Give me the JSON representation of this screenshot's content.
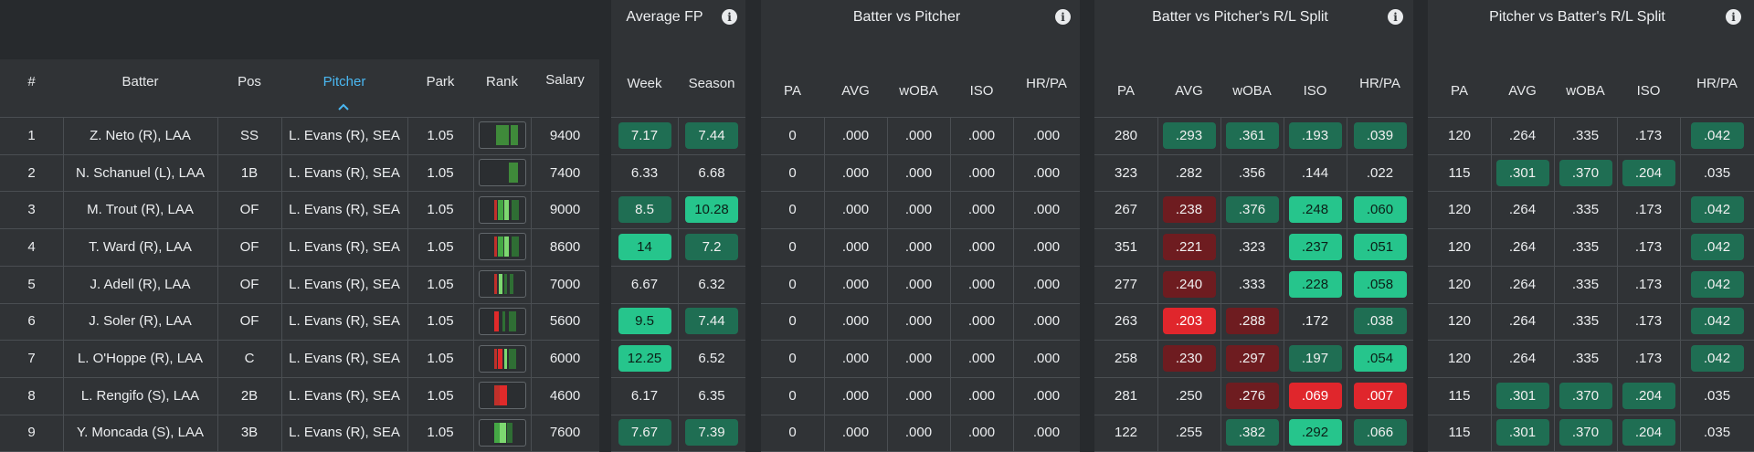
{
  "groups": [
    {
      "title": "Average FP",
      "cols": [
        "Week",
        "Season"
      ]
    },
    {
      "title": "Batter vs Pitcher",
      "cols": [
        "PA",
        "AVG",
        "wOBA",
        "ISO",
        "HR/PA"
      ]
    },
    {
      "title": "Batter vs Pitcher's R/L Split",
      "cols": [
        "PA",
        "AVG",
        "wOBA",
        "ISO",
        "HR/PA"
      ]
    },
    {
      "title": "Pitcher vs Batter's R/L Split",
      "cols": [
        "PA",
        "AVG",
        "wOBA",
        "ISO",
        "HR/PA"
      ]
    }
  ],
  "main_headers": [
    "#",
    "Batter",
    "Pos",
    "Pitcher",
    "Park",
    "Rank",
    "Salary"
  ],
  "sorted_column": "Pitcher",
  "colors": {
    "mid": "#1f6e53",
    "high": "#26c58c",
    "low": "#6e1c20",
    "very_low": "#e0262c",
    "sort_active": "#4ab8f2"
  },
  "rows": [
    {
      "num": "1",
      "batter": "Z. Neto (R), LAA",
      "pos": "SS",
      "pitcher": "L. Evans (R), SEA",
      "park": "1.05",
      "salary": "9400",
      "rank": "dark-green bars",
      "week": {
        "v": "7.17",
        "c": "mid"
      },
      "season": {
        "v": "7.44",
        "c": "mid"
      },
      "bvp": [
        "0",
        ".000",
        ".000",
        ".000",
        ".000"
      ],
      "bvs": [
        {
          "v": "280"
        },
        {
          "v": ".293",
          "c": "mid"
        },
        {
          "v": ".361",
          "c": "mid"
        },
        {
          "v": ".193",
          "c": "mid"
        },
        {
          "v": ".039",
          "c": "mid"
        }
      ],
      "pvb": [
        {
          "v": "120"
        },
        {
          "v": ".264"
        },
        {
          "v": ".335"
        },
        {
          "v": ".173"
        },
        {
          "v": ".042",
          "c": "mid"
        }
      ]
    },
    {
      "num": "2",
      "batter": "N. Schanuel (L), LAA",
      "pos": "1B",
      "pitcher": "L. Evans (R), SEA",
      "park": "1.05",
      "salary": "7400",
      "rank": "dark-green bar",
      "week": {
        "v": "6.33"
      },
      "season": {
        "v": "6.68"
      },
      "bvp": [
        "0",
        ".000",
        ".000",
        ".000",
        ".000"
      ],
      "bvs": [
        {
          "v": "323"
        },
        {
          "v": ".282"
        },
        {
          "v": ".356"
        },
        {
          "v": ".144"
        },
        {
          "v": ".022"
        }
      ],
      "pvb": [
        {
          "v": "115"
        },
        {
          "v": ".301",
          "c": "mid"
        },
        {
          "v": ".370",
          "c": "mid"
        },
        {
          "v": ".204",
          "c": "mid"
        },
        {
          "v": ".035"
        }
      ]
    },
    {
      "num": "3",
      "batter": "M. Trout (R), LAA",
      "pos": "OF",
      "pitcher": "L. Evans (R), SEA",
      "park": "1.05",
      "salary": "9000",
      "rank": "red and green bars",
      "week": {
        "v": "8.5",
        "c": "mid"
      },
      "season": {
        "v": "10.28",
        "c": "high"
      },
      "bvp": [
        "0",
        ".000",
        ".000",
        ".000",
        ".000"
      ],
      "bvs": [
        {
          "v": "267"
        },
        {
          "v": ".238",
          "c": "low"
        },
        {
          "v": ".376",
          "c": "mid"
        },
        {
          "v": ".248",
          "c": "high"
        },
        {
          "v": ".060",
          "c": "high"
        }
      ],
      "pvb": [
        {
          "v": "120"
        },
        {
          "v": ".264"
        },
        {
          "v": ".335"
        },
        {
          "v": ".173"
        },
        {
          "v": ".042",
          "c": "mid"
        }
      ]
    },
    {
      "num": "4",
      "batter": "T. Ward (R), LAA",
      "pos": "OF",
      "pitcher": "L. Evans (R), SEA",
      "park": "1.05",
      "salary": "8600",
      "rank": "red and green bars",
      "week": {
        "v": "14",
        "c": "high"
      },
      "season": {
        "v": "7.2",
        "c": "mid"
      },
      "bvp": [
        "0",
        ".000",
        ".000",
        ".000",
        ".000"
      ],
      "bvs": [
        {
          "v": "351"
        },
        {
          "v": ".221",
          "c": "low"
        },
        {
          "v": ".323"
        },
        {
          "v": ".237",
          "c": "high"
        },
        {
          "v": ".051",
          "c": "high"
        }
      ],
      "pvb": [
        {
          "v": "120"
        },
        {
          "v": ".264"
        },
        {
          "v": ".335"
        },
        {
          "v": ".173"
        },
        {
          "v": ".042",
          "c": "mid"
        }
      ]
    },
    {
      "num": "5",
      "batter": "J. Adell (R), LAA",
      "pos": "OF",
      "pitcher": "L. Evans (R), SEA",
      "park": "1.05",
      "salary": "7000",
      "rank": "red and green bars",
      "week": {
        "v": "6.67"
      },
      "season": {
        "v": "6.32"
      },
      "bvp": [
        "0",
        ".000",
        ".000",
        ".000",
        ".000"
      ],
      "bvs": [
        {
          "v": "277"
        },
        {
          "v": ".240",
          "c": "low"
        },
        {
          "v": ".333"
        },
        {
          "v": ".228",
          "c": "high"
        },
        {
          "v": ".058",
          "c": "high"
        }
      ],
      "pvb": [
        {
          "v": "120"
        },
        {
          "v": ".264"
        },
        {
          "v": ".335"
        },
        {
          "v": ".173"
        },
        {
          "v": ".042",
          "c": "mid"
        }
      ]
    },
    {
      "num": "6",
      "batter": "J. Soler (R), LAA",
      "pos": "OF",
      "pitcher": "L. Evans (R), SEA",
      "park": "1.05",
      "salary": "5600",
      "rank": "red and green bars",
      "week": {
        "v": "9.5",
        "c": "high"
      },
      "season": {
        "v": "7.44",
        "c": "mid"
      },
      "bvp": [
        "0",
        ".000",
        ".000",
        ".000",
        ".000"
      ],
      "bvs": [
        {
          "v": "263"
        },
        {
          "v": ".203",
          "c": "very_low"
        },
        {
          "v": ".288",
          "c": "low"
        },
        {
          "v": ".172"
        },
        {
          "v": ".038",
          "c": "mid"
        }
      ],
      "pvb": [
        {
          "v": "120"
        },
        {
          "v": ".264"
        },
        {
          "v": ".335"
        },
        {
          "v": ".173"
        },
        {
          "v": ".042",
          "c": "mid"
        }
      ]
    },
    {
      "num": "7",
      "batter": "L. O'Hoppe (R), LAA",
      "pos": "C",
      "pitcher": "L. Evans (R), SEA",
      "park": "1.05",
      "salary": "6000",
      "rank": "red and green bars",
      "week": {
        "v": "12.25",
        "c": "high"
      },
      "season": {
        "v": "6.52"
      },
      "bvp": [
        "0",
        ".000",
        ".000",
        ".000",
        ".000"
      ],
      "bvs": [
        {
          "v": "258"
        },
        {
          "v": ".230",
          "c": "low"
        },
        {
          "v": ".297",
          "c": "low"
        },
        {
          "v": ".197",
          "c": "mid"
        },
        {
          "v": ".054",
          "c": "high"
        }
      ],
      "pvb": [
        {
          "v": "120"
        },
        {
          "v": ".264"
        },
        {
          "v": ".335"
        },
        {
          "v": ".173"
        },
        {
          "v": ".042",
          "c": "mid"
        }
      ]
    },
    {
      "num": "8",
      "batter": "L. Rengifo (S), LAA",
      "pos": "2B",
      "pitcher": "L. Evans (R), SEA",
      "park": "1.05",
      "salary": "4600",
      "rank": "red bars",
      "week": {
        "v": "6.17"
      },
      "season": {
        "v": "6.35"
      },
      "bvp": [
        "0",
        ".000",
        ".000",
        ".000",
        ".000"
      ],
      "bvs": [
        {
          "v": "281"
        },
        {
          "v": ".250"
        },
        {
          "v": ".276",
          "c": "low"
        },
        {
          "v": ".069",
          "c": "very_low"
        },
        {
          "v": ".007",
          "c": "very_low"
        }
      ],
      "pvb": [
        {
          "v": "115"
        },
        {
          "v": ".301",
          "c": "mid"
        },
        {
          "v": ".370",
          "c": "mid"
        },
        {
          "v": ".204",
          "c": "mid"
        },
        {
          "v": ".035"
        }
      ]
    },
    {
      "num": "9",
      "batter": "Y. Moncada (S), LAA",
      "pos": "3B",
      "pitcher": "L. Evans (R), SEA",
      "park": "1.05",
      "salary": "7600",
      "rank": "light-green bars",
      "week": {
        "v": "7.67",
        "c": "mid"
      },
      "season": {
        "v": "7.39",
        "c": "mid"
      },
      "bvp": [
        "0",
        ".000",
        ".000",
        ".000",
        ".000"
      ],
      "bvs": [
        {
          "v": "122"
        },
        {
          "v": ".255"
        },
        {
          "v": ".382",
          "c": "mid"
        },
        {
          "v": ".292",
          "c": "high"
        },
        {
          "v": ".066",
          "c": "mid"
        }
      ],
      "pvb": [
        {
          "v": "115"
        },
        {
          "v": ".301",
          "c": "mid"
        },
        {
          "v": ".370",
          "c": "mid"
        },
        {
          "v": ".204",
          "c": "mid"
        },
        {
          "v": ".035"
        }
      ]
    }
  ]
}
